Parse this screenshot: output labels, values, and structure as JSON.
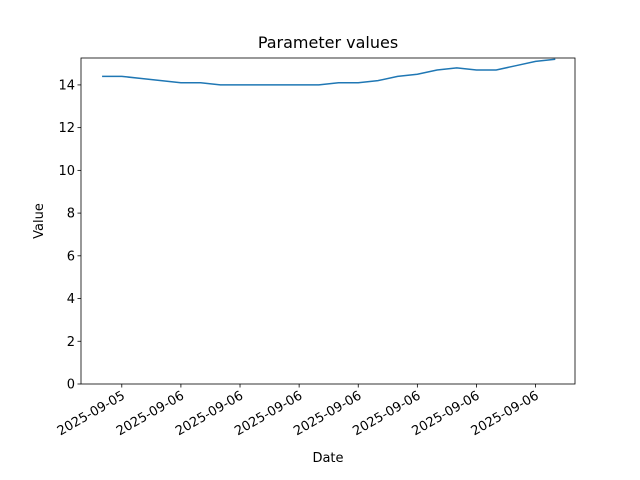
{
  "chart_data": {
    "type": "line",
    "title": "Parameter values",
    "xlabel": "Date",
    "ylabel": "Value",
    "series": [
      {
        "color": "#1f77b4",
        "values": [
          14.4,
          14.4,
          14.3,
          14.2,
          14.1,
          14.1,
          14.0,
          14.0,
          14.0,
          14.0,
          14.0,
          14.0,
          14.1,
          14.1,
          14.2,
          14.4,
          14.5,
          14.7,
          14.8,
          14.7,
          14.7,
          14.9,
          15.1,
          15.2
        ]
      }
    ],
    "xlim": [
      -1.07,
      24.0
    ],
    "xticks": [
      {
        "value": 1,
        "label": "2025-09-05"
      },
      {
        "value": 4,
        "label": "2025-09-06"
      },
      {
        "value": 7,
        "label": "2025-09-06"
      },
      {
        "value": 10,
        "label": "2025-09-06"
      },
      {
        "value": 13,
        "label": "2025-09-06"
      },
      {
        "value": 16,
        "label": "2025-09-06"
      },
      {
        "value": 19,
        "label": "2025-09-06"
      },
      {
        "value": 22,
        "label": "2025-09-06"
      }
    ],
    "ylim": [
      0,
      15.26
    ],
    "yticks": [
      0,
      2,
      4,
      6,
      8,
      10,
      12,
      14
    ],
    "grid": false
  }
}
